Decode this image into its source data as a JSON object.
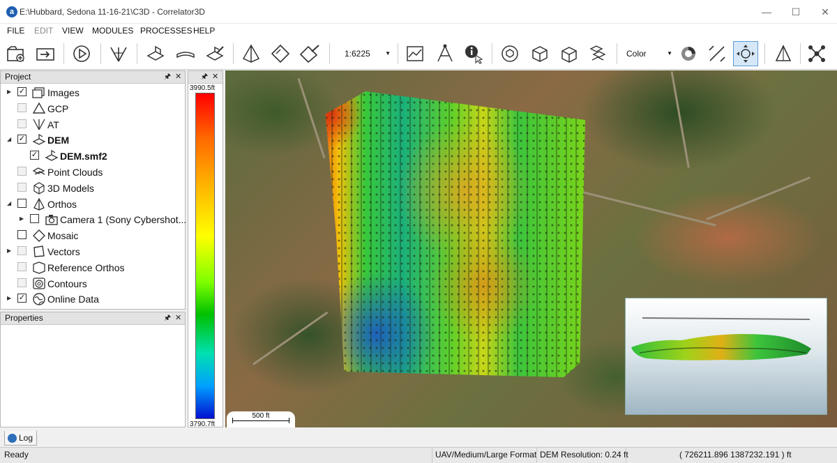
{
  "window": {
    "title": "E:\\Hubbard, Sedona 11-16-21\\C3D - Correlator3D",
    "app_icon_letter": "a",
    "minimize": "—",
    "maximize": "☐",
    "close": "✕"
  },
  "menu": [
    "FILE",
    "EDIT",
    "VIEW",
    "MODULES",
    "PROCESSES",
    "HELP"
  ],
  "toolbar": {
    "scale_value": "1:6225",
    "display_mode": "Color",
    "icons": [
      "new-project-icon",
      "import-icon",
      "run-icon",
      "aerial-triangulation-icon",
      "dsm-icon",
      "dem-icon",
      "edit-dem-icon",
      "ortho-icon",
      "mosaic-icon",
      "edit-mosaic-icon",
      "profile-icon",
      "vectors-icon",
      "info-icon",
      "rotate-3d-icon",
      "3d-model-icon",
      "3d-view-icon",
      "point-cloud-icon",
      "color-wheel-icon",
      "measure-icon",
      "navigate-icon",
      "pyramid-icon",
      "network-icon"
    ]
  },
  "project_panel": {
    "title": "Project",
    "pin": "🖈",
    "close": "✕",
    "items": [
      {
        "label": "Images",
        "checked": true,
        "enabled": true,
        "expander": "▶",
        "bold": false,
        "indent": 0
      },
      {
        "label": "GCP",
        "checked": false,
        "enabled": false,
        "expander": "",
        "bold": false,
        "indent": 0
      },
      {
        "label": "AT",
        "checked": false,
        "enabled": false,
        "expander": "",
        "bold": false,
        "indent": 0
      },
      {
        "label": "DEM",
        "checked": true,
        "enabled": true,
        "expander": "◢",
        "bold": true,
        "indent": 0
      },
      {
        "label": "DEM.smf2",
        "checked": true,
        "enabled": true,
        "expander": "",
        "bold": true,
        "indent": 1
      },
      {
        "label": "Point Clouds",
        "checked": false,
        "enabled": false,
        "expander": "",
        "bold": false,
        "indent": 0
      },
      {
        "label": "3D Models",
        "checked": false,
        "enabled": false,
        "expander": "",
        "bold": false,
        "indent": 0
      },
      {
        "label": "Orthos",
        "checked": false,
        "enabled": true,
        "expander": "◢",
        "bold": false,
        "indent": 0
      },
      {
        "label": "Camera 1 (Sony Cybershot...",
        "checked": false,
        "enabled": true,
        "expander": "▶",
        "bold": false,
        "indent": 1
      },
      {
        "label": "Mosaic",
        "checked": false,
        "enabled": true,
        "expander": "",
        "bold": false,
        "indent": 0
      },
      {
        "label": "Vectors",
        "checked": false,
        "enabled": false,
        "expander": "▶",
        "bold": false,
        "indent": 0
      },
      {
        "label": "Reference Orthos",
        "checked": false,
        "enabled": false,
        "expander": "",
        "bold": false,
        "indent": 0
      },
      {
        "label": "Contours",
        "checked": false,
        "enabled": false,
        "expander": "",
        "bold": false,
        "indent": 0
      },
      {
        "label": "Online Data",
        "checked": true,
        "enabled": true,
        "expander": "▶",
        "bold": false,
        "indent": 0
      }
    ]
  },
  "properties_panel": {
    "title": "Properties",
    "pin": "🖈",
    "close": "✕"
  },
  "legend_panel": {
    "pin": "🖈",
    "close": "✕",
    "max_label": "3990.5ft",
    "min_label": "3790.7ft"
  },
  "map": {
    "scale_label": "500 ft"
  },
  "log_tab": {
    "label": "Log"
  },
  "status": {
    "ready": "Ready",
    "camera_type": "UAV/Medium/Large Format",
    "dem_resolution": "DEM Resolution: 0.24 ft",
    "coordinates": "( 726211.896 1387232.191 ) ft"
  },
  "colors": {
    "accent": "#1f5fb0",
    "active_tool": "#d6e8f8"
  }
}
